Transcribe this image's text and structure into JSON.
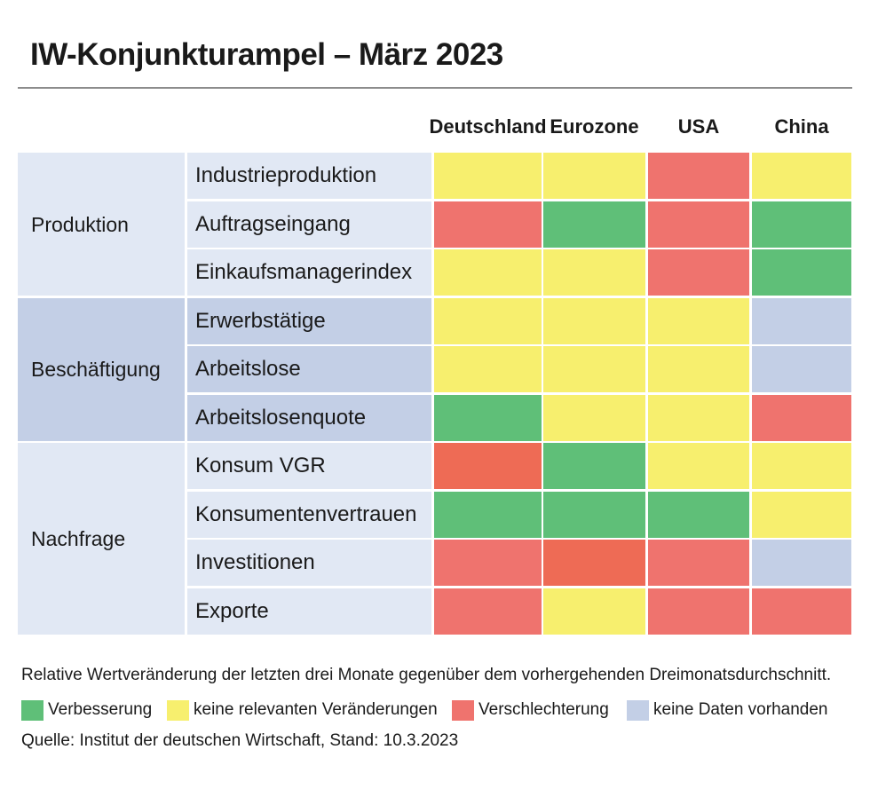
{
  "title": "IW-Konjunkturampel – März 2023",
  "colors": {
    "green": "#5fbf78",
    "yellow": "#f7ef6e",
    "red": "#ef736e",
    "orange": "#ee6b55",
    "blue": "#c3cfe6",
    "group_light": "#e1e8f4",
    "group_dark": "#c3cfe6",
    "indicator_light": "#e1e8f4",
    "indicator_dark": "#c3cfe6"
  },
  "chart_data": {
    "type": "table",
    "columns": [
      "Deutschland",
      "Eurozone",
      "USA",
      "China"
    ],
    "groups": [
      {
        "name": "Produktion",
        "rows": [
          {
            "indicator": "Industrieproduktion",
            "values": [
              "yellow",
              "yellow",
              "red",
              "yellow"
            ]
          },
          {
            "indicator": "Auftragseingang",
            "values": [
              "red",
              "green",
              "red",
              "green"
            ]
          },
          {
            "indicator": "Einkaufsmanagerindex",
            "values": [
              "yellow",
              "yellow",
              "red",
              "green"
            ]
          }
        ]
      },
      {
        "name": "Beschäftigung",
        "rows": [
          {
            "indicator": "Erwerbstätige",
            "values": [
              "yellow",
              "yellow",
              "yellow",
              "blue"
            ]
          },
          {
            "indicator": "Arbeitslose",
            "values": [
              "yellow",
              "yellow",
              "yellow",
              "blue"
            ]
          },
          {
            "indicator": "Arbeitslosenquote",
            "values": [
              "green",
              "yellow",
              "yellow",
              "red"
            ]
          }
        ]
      },
      {
        "name": "Nachfrage",
        "rows": [
          {
            "indicator": "Konsum VGR",
            "values": [
              "orange",
              "green",
              "yellow",
              "yellow"
            ]
          },
          {
            "indicator": "Konsumentenvertrauen",
            "values": [
              "green",
              "green",
              "green",
              "yellow"
            ]
          },
          {
            "indicator": "Investitionen",
            "values": [
              "red",
              "orange",
              "red",
              "blue"
            ]
          },
          {
            "indicator": "Exporte",
            "values": [
              "red",
              "yellow",
              "red",
              "red"
            ]
          }
        ]
      }
    ],
    "note": "Relative Wertveränderung der letzten drei Monate gegenüber dem vorhergehenden Dreimonatsdurchschnitt.",
    "legend": [
      {
        "color": "green",
        "label": "Verbesserung"
      },
      {
        "color": "yellow",
        "label": "keine relevanten Veränderungen"
      },
      {
        "color": "red",
        "label": "Verschlechterung"
      },
      {
        "color": "blue",
        "label": "keine Daten vorhanden"
      }
    ],
    "source": "Quelle: Institut der deutschen Wirtschaft, Stand: 10.3.2023"
  }
}
